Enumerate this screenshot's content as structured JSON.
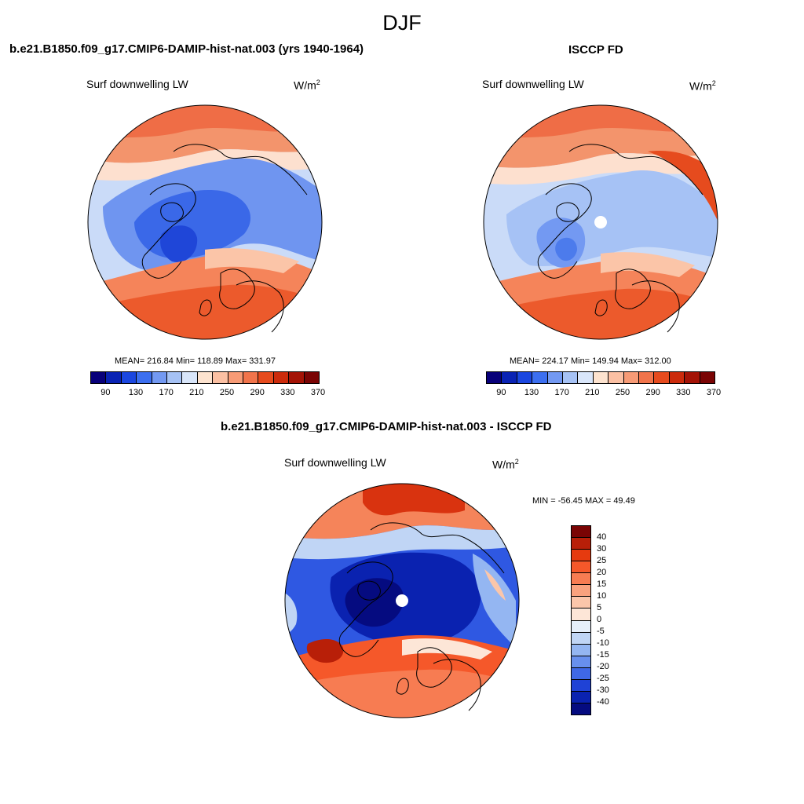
{
  "season_title": "DJF",
  "panels": {
    "model": {
      "title": "b.e21.B1850.f09_g17.CMIP6-DAMIP-hist-nat.003 (yrs 1940-1964)",
      "subtitle": "Surf downwelling LW",
      "units_base": "W/m",
      "units_exp": "2",
      "stats": "MEAN= 216.84  Min= 118.89  Max= 331.97"
    },
    "obs": {
      "title": "ISCCP FD",
      "subtitle": "Surf downwelling LW",
      "units_base": "W/m",
      "units_exp": "2",
      "stats": "MEAN= 224.17  Min= 149.94  Max= 312.00"
    },
    "diff": {
      "title": "b.e21.B1850.f09_g17.CMIP6-DAMIP-hist-nat.003 - ISCCP FD",
      "subtitle": "Surf downwelling LW",
      "units_base": "W/m",
      "units_exp": "2",
      "stats": "MIN = -56.45 MAX =  49.49"
    }
  },
  "colorbar_abs": {
    "labels": [
      "90",
      "130",
      "170",
      "210",
      "250",
      "290",
      "330",
      "370"
    ],
    "colors": [
      "#08007a",
      "#0a23b4",
      "#1b47e0",
      "#3c6ff0",
      "#7399f2",
      "#a6c2f5",
      "#d9e6fa",
      "#fde3cf",
      "#fbc0a3",
      "#f79b76",
      "#f1744b",
      "#e64b1e",
      "#cc2b0c",
      "#a41306",
      "#7a0404"
    ]
  },
  "colorbar_diff": {
    "labels": [
      "40",
      "30",
      "25",
      "20",
      "15",
      "10",
      "5",
      "0",
      "-5",
      "-10",
      "-15",
      "-20",
      "-25",
      "-30",
      "-40"
    ],
    "colors": [
      "#7a0404",
      "#b81f08",
      "#e63a0f",
      "#f5582a",
      "#f77c52",
      "#f9a27e",
      "#fbc6aa",
      "#fde6d7",
      "#e6effa",
      "#c0d5f5",
      "#94b6f2",
      "#6890ee",
      "#3f68e6",
      "#1f42d6",
      "#0a22b0",
      "#050b80"
    ]
  }
}
